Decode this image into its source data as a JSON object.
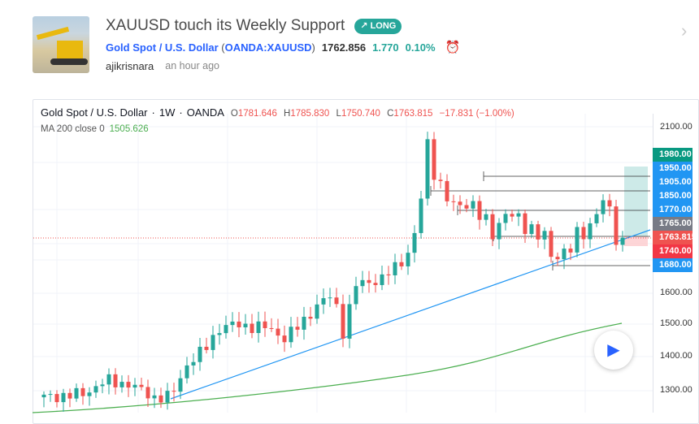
{
  "header": {
    "title": "XAUUSD touch its Weekly Support",
    "badge": "LONG",
    "symbol_name": "Gold Spot / U.S. Dollar",
    "symbol_code": "OANDA:XAUUSD",
    "price": "1762.856",
    "change": "1.770",
    "change_pct": "0.10%",
    "author": "ajikrisnara",
    "time": "an hour ago"
  },
  "legend": {
    "name": "Gold Spot / U.S. Dollar",
    "interval": "1W",
    "exchange": "OANDA",
    "o_label": "O",
    "o": "1781.646",
    "h_label": "H",
    "h": "1785.830",
    "l_label": "L",
    "l": "1750.740",
    "c_label": "C",
    "c": "1763.815",
    "chg": "−17.831 (−1.00%)"
  },
  "ma": {
    "label": "MA 200 close 0",
    "value": "1505.626"
  },
  "axis": {
    "ticks": [
      "2100.00",
      "1600.00",
      "1500.00",
      "1400.00",
      "1300.00"
    ]
  },
  "labels": [
    {
      "text": "1980.00",
      "color": "#089981"
    },
    {
      "text": "1950.00",
      "color": "#2196f3"
    },
    {
      "text": "1905.00",
      "color": "#2196f3"
    },
    {
      "text": "1850.00",
      "color": "#2196f3"
    },
    {
      "text": "1770.00",
      "color": "#2196f3"
    },
    {
      "text": "1765.00",
      "color": "#787b86"
    },
    {
      "text": "1763.815",
      "color": "#ef5350"
    },
    {
      "text": "1740.00",
      "color": "#f23645"
    },
    {
      "text": "1680.00",
      "color": "#2196f3"
    }
  ],
  "colors": {
    "up": "#26a69a",
    "down": "#ef5350",
    "ma": "#4caf50",
    "line": "#2196f3"
  },
  "price_path": [
    [
      0,
      1280
    ],
    [
      6,
      1290
    ],
    [
      9.5,
      1330
    ],
    [
      13,
      1320
    ],
    [
      17,
      1280
    ],
    [
      19.5,
      1280
    ],
    [
      22,
      1380
    ],
    [
      24.5,
      1420
    ],
    [
      27,
      1490
    ],
    [
      29.5,
      1500
    ],
    [
      34.5,
      1490
    ],
    [
      37,
      1460
    ],
    [
      39.5,
      1500
    ],
    [
      42,
      1560
    ],
    [
      44.5,
      1590
    ],
    [
      46,
      1480
    ],
    [
      48,
      1620
    ],
    [
      52,
      1640
    ],
    [
      54.5,
      1680
    ],
    [
      56,
      1720
    ],
    [
      57.5,
      1800
    ],
    [
      59,
      2040
    ],
    [
      60.5,
      1940
    ],
    [
      63,
      1850
    ],
    [
      65.5,
      1880
    ],
    [
      68,
      1800
    ],
    [
      69.5,
      1770
    ],
    [
      70.5,
      1850
    ],
    [
      73,
      1810
    ],
    [
      75.5,
      1790
    ],
    [
      77,
      1760
    ],
    [
      78,
      1700
    ],
    [
      79.5,
      1720
    ],
    [
      81,
      1740
    ],
    [
      82,
      1760
    ],
    [
      83.5,
      1780
    ],
    [
      85,
      1850
    ],
    [
      86,
      1880
    ],
    [
      87,
      1830
    ],
    [
      88,
      1760
    ],
    [
      89,
      1763.8
    ]
  ]
}
